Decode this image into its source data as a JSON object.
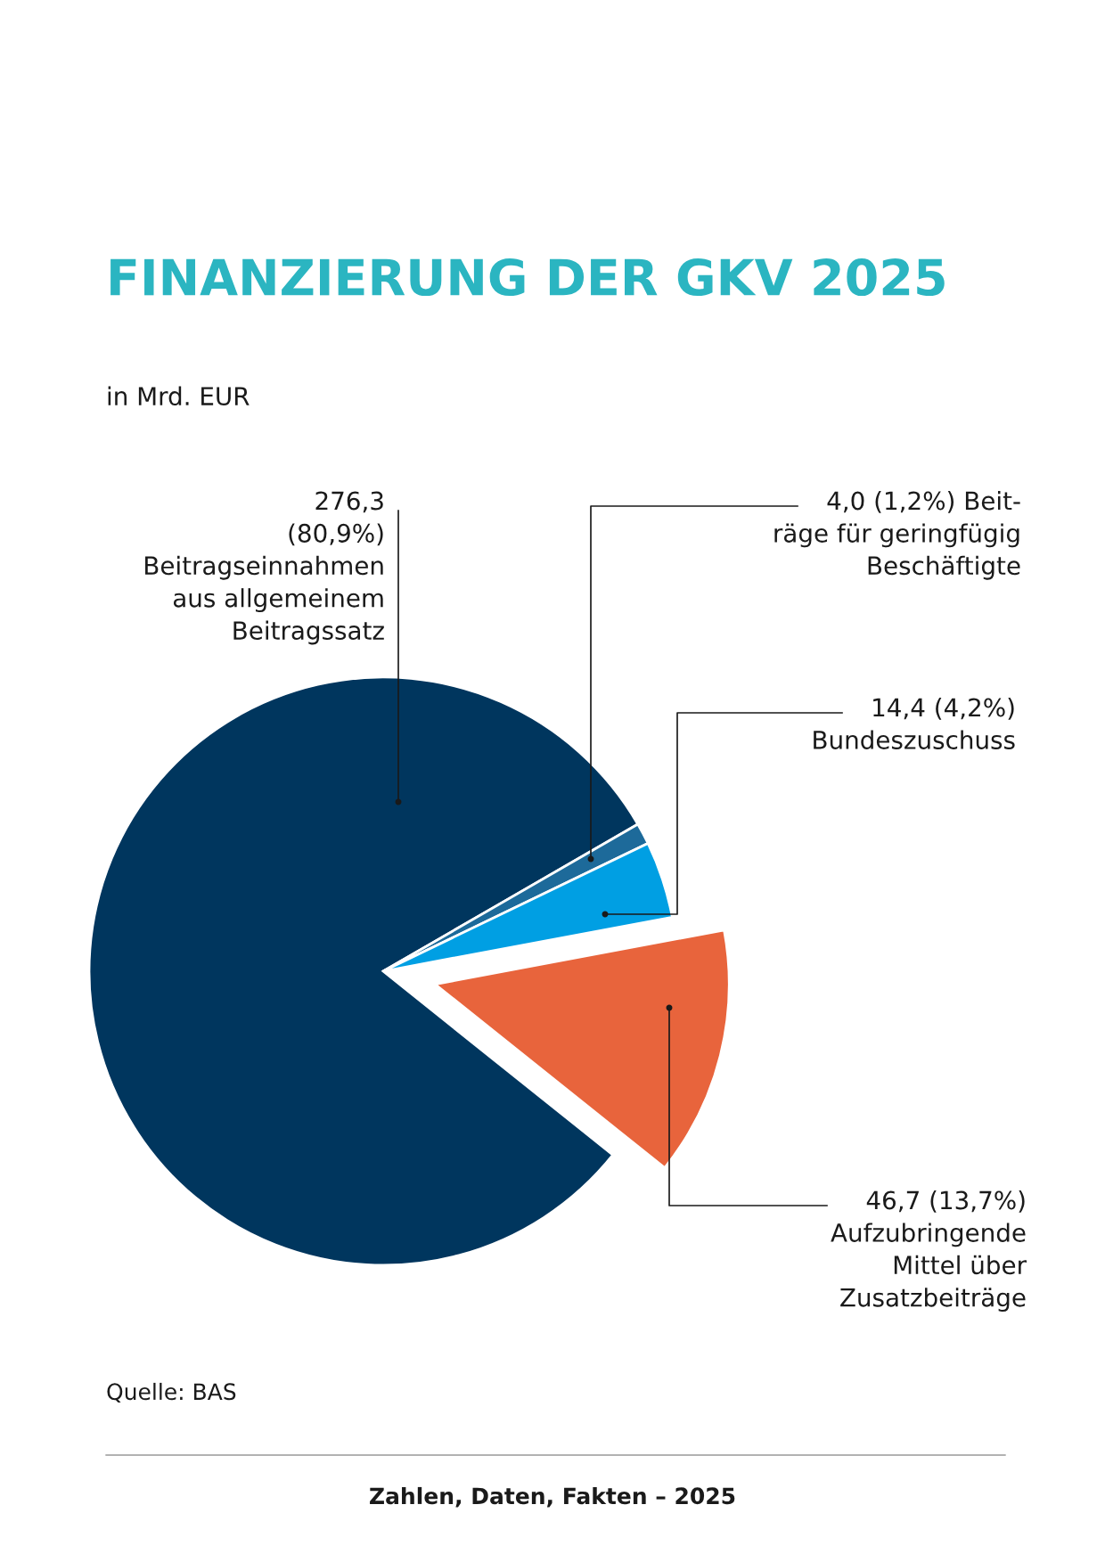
{
  "chart_data": {
    "type": "pie",
    "title": "FINANZIERUNG DER GKV 2025",
    "subtitle": "in Mrd. EUR",
    "categories": [
      "Beitragseinnahmen\naus allgemeinem\nBeitragssatz",
      "Beit-\nräge für geringfügig\nBeschäftigte",
      "Bundeszuschuss",
      "Aufzubringende\nMittel über\nZusatzbeiträge"
    ],
    "values": [
      276.3,
      4.0,
      14.4,
      46.7
    ],
    "value_labels": [
      "276,3\n(80,9%)",
      "4,0 (1,2%)",
      "14,4 (4,2%)",
      "46,7 (13,7%)"
    ],
    "colors": [
      "#00365e",
      "#1d6a9a",
      "#009fe3",
      "#e8643c"
    ],
    "annotations": [
      "Quelle: BAS",
      "Zahlen, Daten, Fakten – 2025"
    ]
  }
}
